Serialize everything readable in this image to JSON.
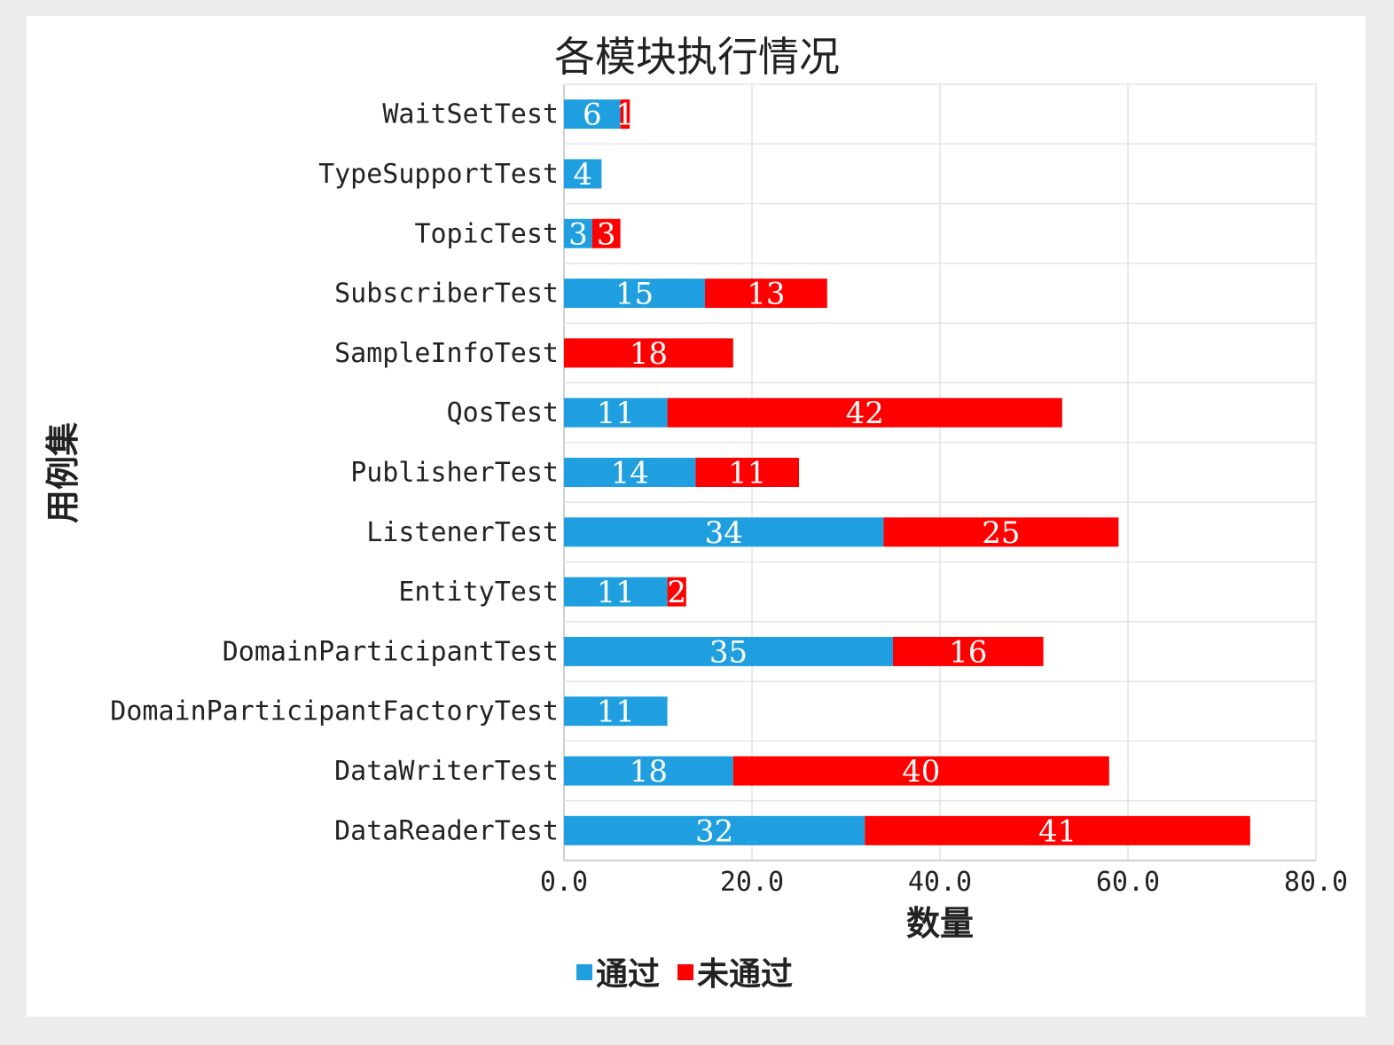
{
  "chart_data": {
    "type": "bar",
    "orientation": "horizontal",
    "stacked": true,
    "title": "各模块执行情况",
    "xlabel": "数量",
    "ylabel": "用例集",
    "xlim": [
      0,
      80
    ],
    "xticks": [
      "0.0",
      "20.0",
      "40.0",
      "60.0",
      "80.0"
    ],
    "grid": true,
    "legend_position": "bottom",
    "categories": [
      "WaitSetTest",
      "TypeSupportTest",
      "TopicTest",
      "SubscriberTest",
      "SampleInfoTest",
      "QosTest",
      "PublisherTest",
      "ListenerTest",
      "EntityTest",
      "DomainParticipantTest",
      "DomainParticipantFactoryTest",
      "DataWriterTest",
      "DataReaderTest"
    ],
    "series": [
      {
        "name": "通过",
        "color": "#1f9fdf",
        "values": [
          6,
          4,
          3,
          15,
          0,
          11,
          14,
          34,
          11,
          35,
          11,
          18,
          32
        ]
      },
      {
        "name": "未通过",
        "color": "#ff0000",
        "values": [
          1,
          0,
          3,
          13,
          18,
          42,
          11,
          25,
          2,
          16,
          0,
          40,
          41
        ]
      }
    ]
  }
}
